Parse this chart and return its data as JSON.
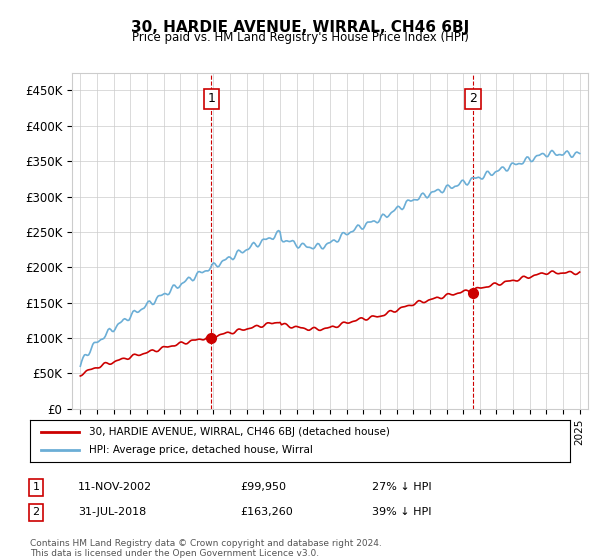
{
  "title": "30, HARDIE AVENUE, WIRRAL, CH46 6BJ",
  "subtitle": "Price paid vs. HM Land Registry's House Price Index (HPI)",
  "ylabel_ticks": [
    "£0",
    "£50K",
    "£100K",
    "£150K",
    "£200K",
    "£250K",
    "£300K",
    "£350K",
    "£400K",
    "£450K"
  ],
  "ytick_values": [
    0,
    50000,
    100000,
    150000,
    200000,
    250000,
    300000,
    350000,
    400000,
    450000
  ],
  "ylim": [
    0,
    475000
  ],
  "sale1_date": 2002.87,
  "sale1_price": 99950,
  "sale1_label": "1",
  "sale2_date": 2018.58,
  "sale2_price": 163260,
  "sale2_label": "2",
  "legend_line1": "30, HARDIE AVENUE, WIRRAL, CH46 6BJ (detached house)",
  "legend_line2": "HPI: Average price, detached house, Wirral",
  "table_row1": [
    "1",
    "11-NOV-2002",
    "£99,950",
    "27% ↓ HPI"
  ],
  "table_row2": [
    "2",
    "31-JUL-2018",
    "£163,260",
    "39% ↓ HPI"
  ],
  "footnote": "Contains HM Land Registry data © Crown copyright and database right 2024.\nThis data is licensed under the Open Government Licence v3.0.",
  "hpi_color": "#6baed6",
  "price_color": "#cc0000",
  "marker_color_sale": "#cc0000",
  "vline_color": "#cc0000",
  "background_color": "#ffffff",
  "grid_color": "#cccccc"
}
